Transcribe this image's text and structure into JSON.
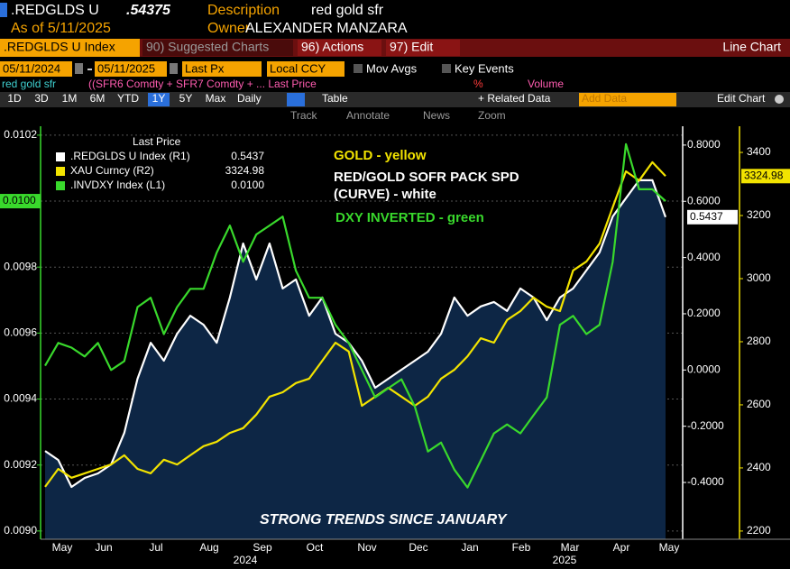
{
  "header": {
    "ticker": ".REDGLDS U",
    "price": ".54375",
    "description_label": "Description",
    "description": "red gold sfr",
    "as_of": "As of 5/11/2025",
    "owner_label": "Owner",
    "owner": "ALEXANDER MANZARA"
  },
  "menu": {
    "security": ".REDGLDS U Index",
    "suggested": "90) Suggested Charts",
    "actions": "96) Actions",
    "edit": "97) Edit",
    "chart_type": "Line Chart"
  },
  "controls": {
    "start": "05/11/2024",
    "end": "05/11/2025",
    "field": "Last Px",
    "currency": "Local CCY",
    "mov_avgs": "Mov Avgs",
    "key_events": "Key Events"
  },
  "study": {
    "name": "red gold sfr",
    "formula": "((SFR6 Comdty + SFR7 Comdty + ... Last Price",
    "percent": "%",
    "volume": "Volume"
  },
  "toolbar": {
    "periods": [
      "1D",
      "3D",
      "1M",
      "6M",
      "YTD",
      "1Y",
      "5Y",
      "Max"
    ],
    "frequency": "Daily",
    "table": "Table",
    "related": "+ Related Data",
    "add_data": "Add Data",
    "edit_chart": "Edit Chart"
  },
  "tools": [
    "Track",
    "Annotate",
    "News",
    "Zoom"
  ],
  "chart_data": {
    "type": "line",
    "legend_title": "Last Price",
    "annotations": [
      "GOLD - yellow",
      "RED/GOLD SOFR PACK SPD",
      "(CURVE) - white",
      "DXY INVERTED - green",
      "STRONG TRENDS SINCE JANUARY"
    ],
    "month_labels": [
      "May",
      "Jun",
      "Jul",
      "Aug",
      "Sep",
      "Oct",
      "Nov",
      "Dec",
      "Jan",
      "Feb",
      "Mar",
      "Apr",
      "May"
    ],
    "year_labels": [
      "2024",
      "2025"
    ],
    "ylim": [
      0.008975,
      0.010227
    ],
    "yticks": [
      {
        "value": 0.009,
        "label": "0.0090"
      },
      0.0092,
      0.0094,
      0.0096,
      0.0098,
      {
        "value": 0.01,
        "label": "0.0100"
      },
      0.0102
    ],
    "y2lim": [
      -0.602,
      0.867
    ],
    "y2ticks": [
      {
        "value": -0.4,
        "label": "-0.4000"
      },
      {
        "value": -0.2,
        "label": "-0.2000"
      },
      {
        "value": 0,
        "label": "0.0000"
      },
      {
        "value": 0.2,
        "label": "0.2000"
      },
      {
        "value": 0.4,
        "label": "0.4000"
      },
      {
        "value": 0.6,
        "label": "0.6000"
      },
      {
        "value": 0.8,
        "label": "0.8000"
      }
    ],
    "y3lim": [
      2174,
      3483
    ],
    "y3ticks": [
      2200,
      2400,
      2600,
      2800,
      3000,
      3200,
      3400
    ],
    "grid": true,
    "series": [
      {
        "name": ".REDGLDS U Index  (R1)",
        "axis": "y2",
        "color": "#ffffff",
        "area": true,
        "last_label": "0.5437",
        "values": [
          -0.288,
          -0.32,
          -0.416,
          -0.384,
          -0.368,
          -0.336,
          -0.224,
          -0.031,
          0.097,
          0.033,
          0.129,
          0.193,
          0.161,
          0.097,
          0.258,
          0.45,
          0.322,
          0.45,
          0.29,
          0.322,
          0.193,
          0.258,
          0.129,
          0.097,
          0.033,
          -0.063,
          -0.031,
          0.001,
          0.033,
          0.065,
          0.129,
          0.258,
          0.193,
          0.226,
          0.242,
          0.21,
          0.29,
          0.258,
          0.177,
          0.258,
          0.29,
          0.354,
          0.418,
          0.546,
          0.611,
          0.675,
          0.675,
          0.5437
        ]
      },
      {
        "name": "XAU Curncy  (R2)",
        "axis": "y3",
        "color": "#f2e300",
        "last_label": "3324.98",
        "values": [
          2340,
          2397,
          2369,
          2383,
          2397,
          2411,
          2440,
          2397,
          2383,
          2426,
          2411,
          2440,
          2469,
          2483,
          2511,
          2526,
          2569,
          2626,
          2640,
          2669,
          2683,
          2740,
          2797,
          2769,
          2597,
          2626,
          2654,
          2626,
          2597,
          2626,
          2683,
          2711,
          2754,
          2811,
          2797,
          2869,
          2897,
          2940,
          2911,
          2897,
          3026,
          3054,
          3111,
          3226,
          3340,
          3311,
          3369,
          3324.98
        ]
      },
      {
        "name": ".INVDXY Index  (L1)",
        "axis": "y",
        "color": "#39d92c",
        "last_label": "0.0100",
        "values": [
          0.009501,
          0.00957,
          0.009556,
          0.009529,
          0.00957,
          0.009488,
          0.009515,
          0.009679,
          0.009707,
          0.009597,
          0.009679,
          0.009734,
          0.009734,
          0.009844,
          0.009926,
          0.009816,
          0.009899,
          0.009926,
          0.009953,
          0.009789,
          0.009707,
          0.009707,
          0.009625,
          0.00957,
          0.009488,
          0.009405,
          0.009433,
          0.00946,
          0.009378,
          0.009241,
          0.009268,
          0.009186,
          0.009132,
          0.009214,
          0.009296,
          0.009323,
          0.009296,
          0.009351,
          0.009405,
          0.009625,
          0.009652,
          0.009597,
          0.009625,
          0.009816,
          0.010173,
          0.010036,
          0.010036,
          0.01
        ]
      }
    ]
  }
}
